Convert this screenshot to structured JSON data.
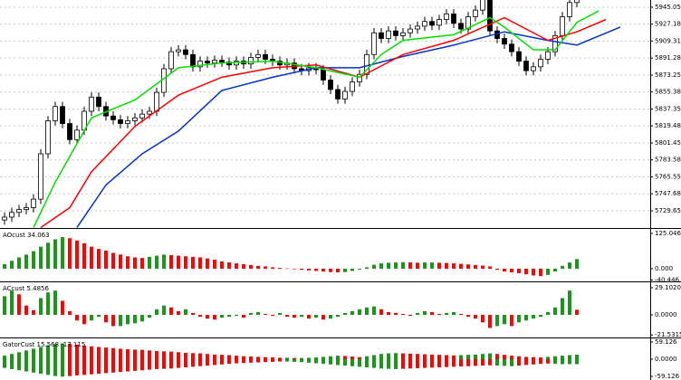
{
  "chart_data": [
    {
      "type": "candlestick",
      "open": [
        5720,
        5723,
        5728,
        5731,
        5733,
        5742,
        5790,
        5825,
        5840,
        5822,
        5805,
        5815,
        5835,
        5850,
        5840,
        5830,
        5826,
        5822,
        5825,
        5828,
        5832,
        5835,
        5855,
        5880,
        5898,
        5900,
        5895,
        5882,
        5888,
        5886,
        5889,
        5887,
        5884,
        5888,
        5885,
        5892,
        5895,
        5890,
        5888,
        5884,
        5886,
        5880,
        5878,
        5881,
        5879,
        5868,
        5858,
        5848,
        5856,
        5866,
        5874,
        5895,
        5918,
        5912,
        5920,
        5915,
        5918,
        5922,
        5925,
        5930,
        5926,
        5932,
        5938,
        5928,
        5922,
        5935,
        5942,
        5955,
        5920,
        5912,
        5906,
        5898,
        5888,
        5878,
        5882,
        5890,
        5898,
        5915,
        5935,
        5950
      ],
      "high": [
        5728,
        5733,
        5736,
        5738,
        5747,
        5795,
        5830,
        5845,
        5845,
        5827,
        5820,
        5840,
        5855,
        5855,
        5845,
        5835,
        5831,
        5830,
        5833,
        5837,
        5840,
        5860,
        5885,
        5903,
        5905,
        5905,
        5900,
        5893,
        5893,
        5894,
        5894,
        5892,
        5893,
        5893,
        5897,
        5900,
        5900,
        5895,
        5893,
        5891,
        5891,
        5885,
        5886,
        5886,
        5884,
        5873,
        5863,
        5861,
        5871,
        5879,
        5900,
        5923,
        5923,
        5925,
        5925,
        5923,
        5927,
        5930,
        5935,
        5935,
        5937,
        5943,
        5943,
        5933,
        5940,
        5947,
        5960,
        5960,
        5925,
        5917,
        5911,
        5903,
        5893,
        5887,
        5895,
        5903,
        5920,
        5940,
        5955,
        5963
      ],
      "low": [
        5715,
        5718,
        5723,
        5726,
        5728,
        5737,
        5785,
        5820,
        5817,
        5800,
        5800,
        5810,
        5830,
        5835,
        5825,
        5821,
        5817,
        5817,
        5820,
        5823,
        5827,
        5830,
        5850,
        5875,
        5893,
        5890,
        5877,
        5877,
        5881,
        5881,
        5882,
        5879,
        5879,
        5880,
        5880,
        5887,
        5885,
        5883,
        5879,
        5879,
        5875,
        5873,
        5873,
        5874,
        5863,
        5853,
        5843,
        5843,
        5851,
        5861,
        5869,
        5890,
        5907,
        5907,
        5910,
        5910,
        5913,
        5917,
        5920,
        5921,
        5921,
        5927,
        5923,
        5917,
        5917,
        5930,
        5937,
        5915,
        5907,
        5901,
        5893,
        5883,
        5873,
        5873,
        5877,
        5885,
        5893,
        5910,
        5930,
        5945
      ],
      "close": [
        5723,
        5728,
        5731,
        5733,
        5742,
        5790,
        5825,
        5840,
        5822,
        5805,
        5815,
        5835,
        5850,
        5840,
        5830,
        5826,
        5822,
        5825,
        5828,
        5832,
        5835,
        5855,
        5880,
        5898,
        5900,
        5895,
        5882,
        5888,
        5886,
        5889,
        5887,
        5884,
        5888,
        5885,
        5892,
        5895,
        5890,
        5888,
        5884,
        5886,
        5880,
        5878,
        5881,
        5879,
        5868,
        5858,
        5848,
        5856,
        5866,
        5874,
        5895,
        5918,
        5912,
        5920,
        5915,
        5918,
        5922,
        5925,
        5930,
        5926,
        5932,
        5938,
        5928,
        5922,
        5935,
        5942,
        5955,
        5920,
        5912,
        5906,
        5898,
        5888,
        5878,
        5882,
        5890,
        5898,
        5915,
        5935,
        5950,
        5958
      ],
      "up_color": "#ffffff",
      "down_color": "#000000",
      "lines": [
        {
          "color": "#0033cc",
          "x": [
            10,
            14,
            19,
            24,
            30,
            37,
            43,
            49,
            55,
            62,
            69,
            75,
            79,
            85
          ],
          "values": [
            5712,
            5757,
            5790,
            5814,
            5857,
            5871,
            5881,
            5881,
            5893,
            5905,
            5919,
            5910,
            5905,
            5924
          ]
        },
        {
          "color": "#ff0000",
          "x": [
            5,
            9,
            12,
            18,
            24,
            30,
            37,
            43,
            49,
            55,
            62,
            69,
            75,
            79,
            83
          ],
          "values": [
            5712,
            5733,
            5771,
            5819,
            5852,
            5871,
            5881,
            5884,
            5871,
            5895,
            5910,
            5934,
            5910,
            5919,
            5932
          ]
        },
        {
          "color": "#00e000",
          "x": [
            4,
            7,
            12,
            18,
            24,
            30,
            37,
            43,
            49,
            52,
            55,
            62,
            67,
            69,
            73,
            76,
            79,
            82
          ],
          "values": [
            5712,
            5760,
            5828,
            5847,
            5881,
            5886,
            5888,
            5881,
            5871,
            5895,
            5910,
            5916,
            5934,
            5924,
            5900,
            5900,
            5929,
            5941
          ]
        }
      ],
      "ylim": [
        5711.5,
        5952.7
      ],
      "yticks": [
        5945.05,
        5927.18,
        5909.31,
        5891.28,
        5873.25,
        5855.38,
        5837.35,
        5819.48,
        5801.45,
        5783.58,
        5765.55,
        5747.68,
        5729.65
      ],
      "grid": true
    },
    {
      "type": "bar",
      "title": "AOcust 34.063",
      "values": [
        16,
        28,
        40,
        50,
        62,
        78,
        92,
        104,
        112,
        108,
        100,
        90,
        78,
        70,
        64,
        56,
        50,
        44,
        40,
        38,
        42,
        46,
        50,
        48,
        46,
        44,
        42,
        40,
        36,
        32,
        26,
        22,
        19,
        16,
        13,
        10,
        8,
        5,
        3,
        1,
        -2,
        -4,
        -6,
        -8,
        -10,
        -12,
        -13,
        -12,
        -8,
        -3,
        5,
        14,
        19,
        21,
        22,
        23,
        22,
        21,
        22,
        22,
        21,
        20,
        19,
        17,
        15,
        13,
        11,
        8,
        -4,
        -10,
        -13,
        -16,
        -20,
        -24,
        -26,
        -22,
        -10,
        10,
        22,
        34.063
      ],
      "up_color": "#1a961a",
      "down_color": "#ff0000",
      "ylim": [
        -45,
        141
      ],
      "yticks": [
        125.046,
        {
          "value": 0,
          "label": "0.000"
        },
        -40.446
      ]
    },
    {
      "type": "bar",
      "title": "ACcust 5.4856",
      "values": [
        20,
        26,
        22,
        10,
        5,
        18,
        24,
        26,
        15,
        4,
        -6,
        -10,
        -6,
        -2,
        -8,
        -12,
        -12,
        -10,
        -9,
        -7,
        -3,
        6,
        10,
        8,
        4,
        6,
        2,
        -2,
        -4,
        -5,
        -3,
        -2,
        -1,
        -3,
        2,
        3,
        1,
        -1,
        2,
        -2,
        -3,
        -2,
        -4,
        -3,
        -5,
        -4,
        -2,
        2,
        4,
        6,
        8,
        9,
        6,
        3,
        2,
        1,
        -1,
        2,
        4,
        3,
        1,
        2,
        3,
        1,
        -2,
        -4,
        -8,
        -14,
        -12,
        -10,
        -12,
        -8,
        -6,
        -4,
        -2,
        3,
        8,
        18,
        26,
        5.4856
      ],
      "up_color": "#1a961a",
      "down_color": "#ff0000",
      "ylim": [
        -24.2,
        34.9
      ],
      "yticks": [
        {
          "value": 29.102,
          "label": "29.1020"
        },
        {
          "value": 0,
          "label": "0.0000"
        },
        -21.5315
      ]
    },
    {
      "type": "gator",
      "title": "GatorCust 15.568 -17.115",
      "series": [
        {
          "values": [
            12,
            18,
            24,
            30,
            36,
            42,
            48,
            52,
            54,
            53,
            50,
            47,
            44,
            42,
            40,
            38,
            36,
            34,
            33,
            32,
            30,
            28,
            27,
            26,
            24,
            22,
            21,
            20,
            18,
            16,
            15,
            14,
            12,
            10,
            9,
            8,
            7,
            6,
            5,
            5,
            4,
            4,
            5,
            6,
            8,
            10,
            12,
            11,
            9,
            7,
            10,
            14,
            18,
            20,
            21,
            20,
            19,
            18,
            17,
            16,
            15,
            14,
            13,
            14,
            15,
            16,
            18,
            20,
            18,
            15,
            12,
            10,
            8,
            7,
            6,
            8,
            10,
            12,
            14,
            15.568
          ]
        },
        {
          "values": [
            -30,
            -34,
            -38,
            -42,
            -46,
            -50,
            -54,
            -58,
            -60,
            -58,
            -56,
            -54,
            -52,
            -50,
            -48,
            -46,
            -44,
            -42,
            -40,
            -38,
            -36,
            -34,
            -33,
            -32,
            -30,
            -28,
            -26,
            -24,
            -22,
            -20,
            -18,
            -16,
            -14,
            -13,
            -12,
            -11,
            -10,
            -9,
            -8,
            -8,
            -9,
            -10,
            -12,
            -14,
            -16,
            -18,
            -20,
            -22,
            -24,
            -26,
            -28,
            -30,
            -32,
            -33,
            -34,
            -33,
            -32,
            -31,
            -30,
            -29,
            -28,
            -27,
            -26,
            -25,
            -24,
            -23,
            -22,
            -21,
            -22,
            -23,
            -24,
            -22,
            -20,
            -18,
            -16,
            -15,
            -16,
            -17,
            -17,
            -17.115
          ]
        }
      ],
      "up_color": "#1a961a",
      "down_color": "#ff0000",
      "ylim": [
        -71.6,
        71.6
      ],
      "yticks": [
        59.126,
        {
          "value": 0,
          "label": "0.0000"
        },
        -59.126
      ]
    }
  ]
}
